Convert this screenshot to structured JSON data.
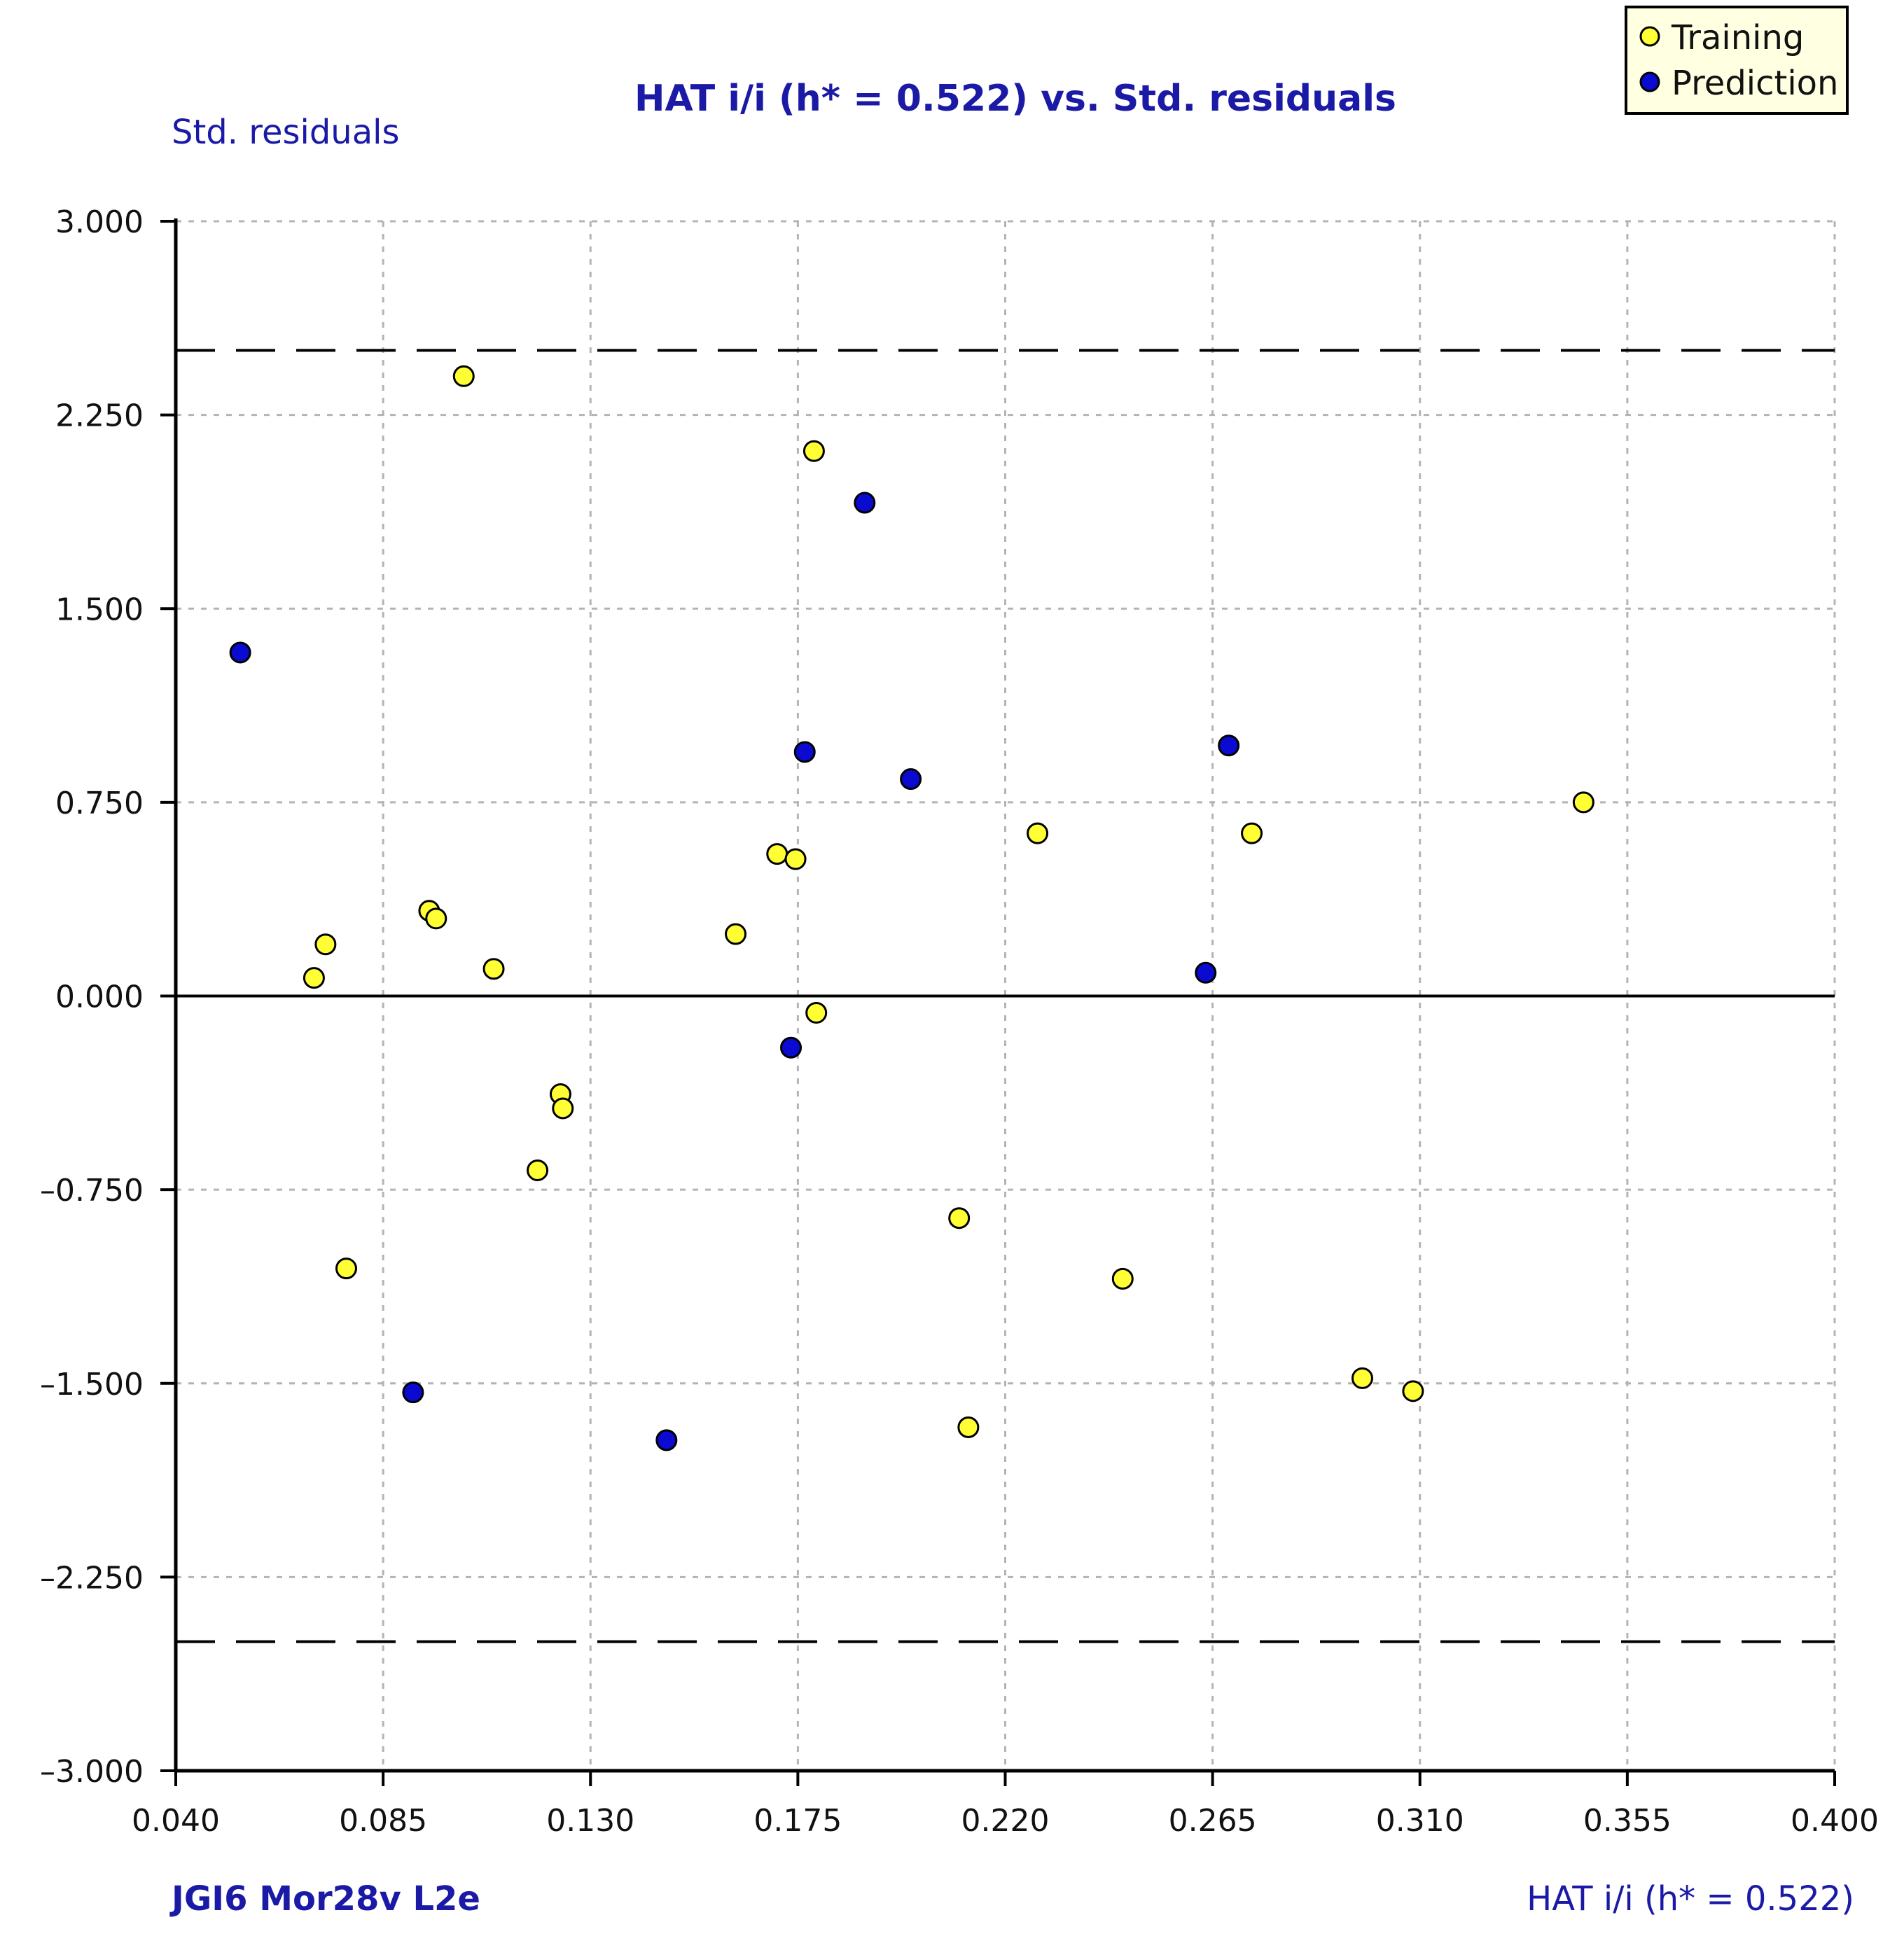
{
  "chart_data": {
    "type": "scatter",
    "title": "HAT i/i (h* = 0.522) vs. Std. residuals",
    "ylabel": "Std. residuals",
    "xlabel": "HAT i/i (h* = 0.522)",
    "footer_left": "JGI6  Mor28v  L2e",
    "xlim": [
      0.04,
      0.4
    ],
    "ylim": [
      -3.0,
      3.0
    ],
    "x_ticks": [
      "0.040",
      "0.085",
      "0.130",
      "0.175",
      "0.220",
      "0.265",
      "0.310",
      "0.355",
      "0.400"
    ],
    "x_tick_values": [
      0.04,
      0.085,
      0.13,
      0.175,
      0.22,
      0.265,
      0.31,
      0.355,
      0.4
    ],
    "y_ticks": [
      "3.000",
      "2.250",
      "1.500",
      "0.750",
      "0.000",
      "–0.750",
      "–1.500",
      "–2.250",
      "–3.000"
    ],
    "y_tick_values": [
      3.0,
      2.25,
      1.5,
      0.75,
      0.0,
      -0.75,
      -1.5,
      -2.25,
      -3.0
    ],
    "grid": true,
    "reference_lines": {
      "solid": [
        0.0
      ],
      "dashed": [
        2.5,
        -2.5
      ]
    },
    "legend_position": "top-right",
    "series": [
      {
        "name": "Training",
        "color": "#ffff33",
        "x": [
          0.07,
          0.0725,
          0.077,
          0.095,
          0.0965,
          0.1025,
          0.109,
          0.1185,
          0.1235,
          0.124,
          0.1615,
          0.1705,
          0.1745,
          0.1785,
          0.179,
          0.21,
          0.212,
          0.227,
          0.2455,
          0.2735,
          0.2975,
          0.3085,
          0.3455
        ],
        "y": [
          0.07,
          0.2,
          -1.055,
          0.33,
          0.3,
          2.4,
          0.105,
          -0.675,
          -0.38,
          -0.435,
          0.24,
          0.55,
          0.53,
          2.11,
          -0.065,
          -0.86,
          -1.67,
          0.63,
          -1.095,
          0.63,
          -1.48,
          -1.53,
          0.75
        ]
      },
      {
        "name": "Prediction",
        "color": "#0a0ad0",
        "x": [
          0.054,
          0.0915,
          0.1465,
          0.1735,
          0.1765,
          0.1895,
          0.1995,
          0.2635,
          0.2685
        ],
        "y": [
          1.33,
          -1.535,
          -1.72,
          -0.2,
          0.945,
          1.91,
          0.84,
          0.09,
          0.97
        ]
      }
    ]
  },
  "colors": {
    "title": "#1a1aa6",
    "axis": "#000000",
    "grid": "#b4b4b4",
    "legend_bg": "#ffffe1",
    "training_fill": "#ffff33",
    "prediction_fill": "#0a0ad0"
  }
}
